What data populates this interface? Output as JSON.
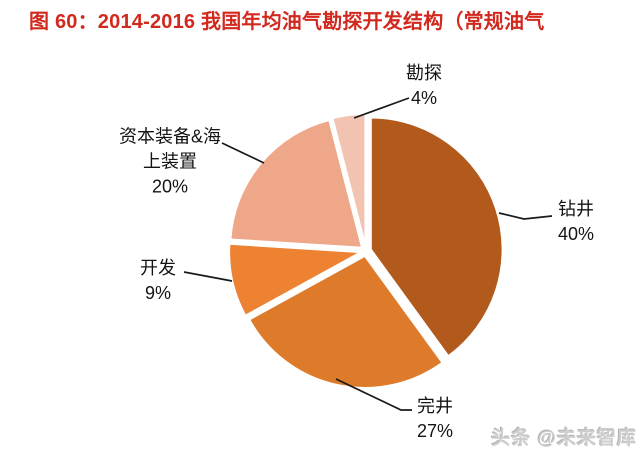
{
  "header": {
    "title": "图 60：2014-2016 我国年均油气勘探开发结构（常规油气",
    "title_color": "#d2291e"
  },
  "watermark": {
    "text": "头条 @未来智库"
  },
  "chart_data": {
    "type": "pie",
    "title": "2014-2016 我国年均油气勘探开发结构（常规油气）",
    "direction": "clockwise",
    "start_angle_deg": 0,
    "exploded": true,
    "legend": "none",
    "slices": [
      {
        "label": "钻井",
        "value": 40,
        "pct_text": "40%",
        "color": "#b25a1c"
      },
      {
        "label": "完井",
        "value": 27,
        "pct_text": "27%",
        "color": "#dd7b2b"
      },
      {
        "label": "开发",
        "value": 9,
        "pct_text": "9%",
        "color": "#ee8233"
      },
      {
        "label": "资本装备&海上装置",
        "value": 20,
        "pct_text": "20%",
        "color": "#efa78a"
      },
      {
        "label": "勘探",
        "value": 4,
        "pct_text": "4%",
        "color": "#f2c3b0"
      }
    ]
  }
}
